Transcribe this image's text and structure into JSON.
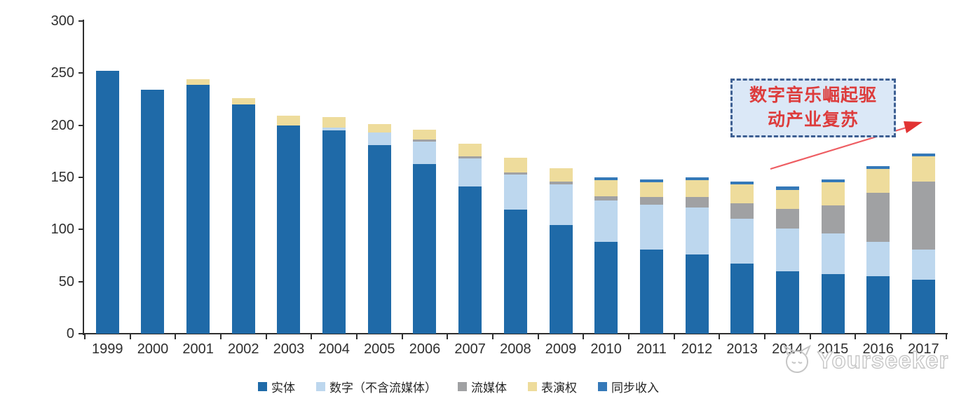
{
  "chart_data": {
    "type": "bar",
    "stacked": true,
    "title": "",
    "xlabel": "",
    "ylabel": "",
    "categories": [
      "1999",
      "2000",
      "2001",
      "2002",
      "2003",
      "2004",
      "2005",
      "2006",
      "2007",
      "2008",
      "2009",
      "2010",
      "2011",
      "2012",
      "2013",
      "2014",
      "2015",
      "2016",
      "2017"
    ],
    "series": [
      {
        "name": "实体",
        "color": "#1f6aa8",
        "values": [
          252,
          234,
          239,
          220,
          200,
          195,
          181,
          163,
          141,
          119,
          104,
          88,
          81,
          76,
          67,
          60,
          57,
          55,
          52
        ]
      },
      {
        "name": "数字（不含流媒体）",
        "color": "#bdd7ee",
        "values": [
          0,
          0,
          0,
          0,
          0,
          3,
          12,
          21,
          27,
          34,
          39,
          40,
          43,
          45,
          43,
          41,
          39,
          33,
          29
        ]
      },
      {
        "name": "流媒体",
        "color": "#a0a1a3",
        "values": [
          0,
          0,
          0,
          0,
          0,
          0,
          0,
          2,
          2,
          2,
          3,
          4,
          7,
          10,
          15,
          19,
          27,
          47,
          65
        ]
      },
      {
        "name": "表演权",
        "color": "#eedc9c",
        "values": [
          0,
          0,
          5,
          6,
          9,
          10,
          8,
          10,
          12,
          14,
          13,
          15,
          14,
          16,
          18,
          18,
          22,
          23,
          24
        ]
      },
      {
        "name": "同步收入",
        "color": "#3579b8",
        "values": [
          0,
          0,
          0,
          0,
          0,
          0,
          0,
          0,
          0,
          0,
          0,
          3,
          3,
          3,
          3,
          3,
          3,
          3,
          3
        ]
      }
    ],
    "ylim": [
      0,
      300
    ],
    "yticks": [
      0,
      50,
      100,
      150,
      200,
      250,
      300
    ],
    "grid": false,
    "legend_position": "bottom",
    "axis_color": "#2f2f2f"
  },
  "annotation": {
    "line1": "数字音乐崛起驱",
    "line2": "动产业复苏",
    "text_color": "#dd3c3c",
    "border_color": "#3e6093",
    "fill_color": "#dbe8f7",
    "arrow_color": "#ee5d62",
    "arrowhead_color": "#e23333"
  },
  "watermark": {
    "text": "Yourseeker",
    "color": "#c6c6c6",
    "logo": "cat-logo-icon"
  }
}
